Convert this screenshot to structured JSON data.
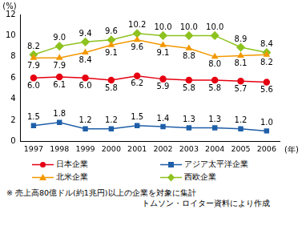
{
  "chart_data": {
    "type": "line",
    "y_label": "(%)",
    "x_label": "(年)",
    "categories": [
      "1997",
      "1998",
      "1999",
      "2000",
      "2001",
      "2002",
      "2003",
      "2004",
      "2005",
      "2006"
    ],
    "series": [
      {
        "name": "日本企業",
        "color": "#e60012",
        "marker": "circle",
        "values": [
          6.0,
          6.1,
          6.0,
          5.8,
          6.2,
          5.9,
          5.8,
          5.8,
          5.7,
          5.6
        ],
        "value_labels": [
          "6.0",
          "6.1",
          "6.0",
          "5.8",
          "6.2",
          "5.9",
          "5.8",
          "5.8",
          "5.7",
          "5.6"
        ]
      },
      {
        "name": "アジア太平洋企業",
        "color": "#1f5fa8",
        "marker": "square",
        "values": [
          1.5,
          1.8,
          1.2,
          1.2,
          1.5,
          1.4,
          1.3,
          1.3,
          1.2,
          1.0
        ],
        "value_labels": [
          "1.5",
          "1.8",
          "1.2",
          "1.2",
          "1.5",
          "1.4",
          "1.3",
          "1.3",
          "1.2",
          "1.0"
        ]
      },
      {
        "name": "北米企業",
        "color": "#f39800",
        "marker": "triangle",
        "values": [
          7.9,
          7.9,
          8.4,
          9.1,
          9.6,
          9.1,
          8.8,
          8.0,
          8.1,
          8.2
        ],
        "value_labels": [
          "7.9",
          "7.9",
          "8.4",
          "9.1",
          "9.6",
          "9.1",
          "8.8",
          "8.0",
          "8.1",
          "8.2"
        ]
      },
      {
        "name": "西欧企業",
        "color": "#8dc21f",
        "marker": "diamond",
        "values": [
          8.2,
          9.0,
          9.4,
          9.6,
          10.2,
          10.0,
          10.0,
          10.0,
          8.9,
          8.4
        ],
        "value_labels": [
          "8.2",
          "9.0",
          "9.4",
          "9.6",
          "10.2",
          "10.0",
          "10.0",
          "10.0",
          "8.9",
          "8.4"
        ]
      }
    ],
    "ylim": [
      0,
      12
    ],
    "yticks": [
      0,
      2,
      4,
      6,
      8,
      10,
      12
    ],
    "grid": false,
    "legend": "bottom",
    "data_labels": true,
    "notes": [
      "※ 売上高80億ドル(約1兆円)以上の企業を対象に集計",
      "トムソン・ロイター資料により作成"
    ]
  }
}
